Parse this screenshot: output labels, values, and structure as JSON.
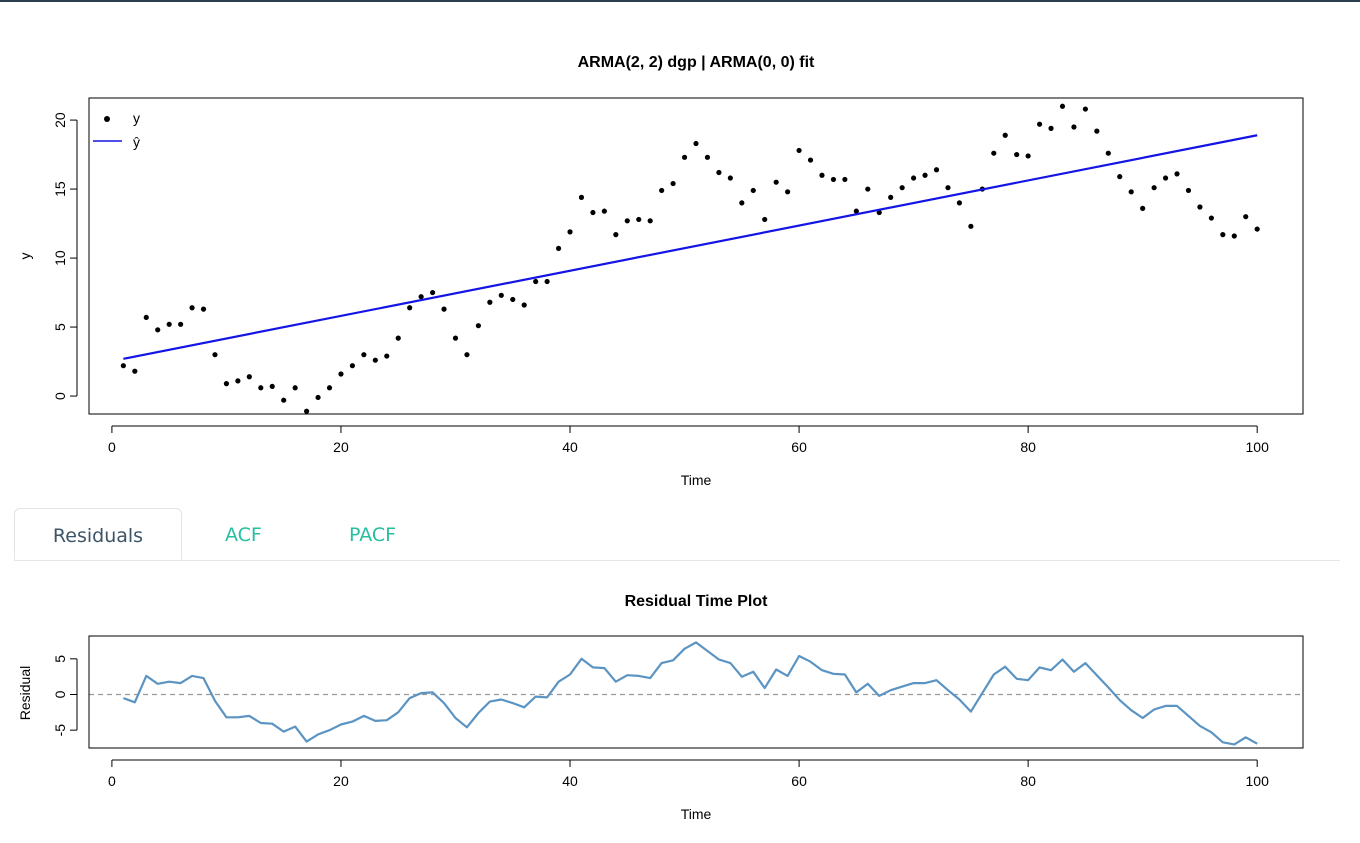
{
  "chart_data": [
    {
      "type": "scatter+line",
      "title": "ARMA(2, 2) dgp | ARMA(0, 0) fit",
      "xlabel": "Time",
      "ylabel": "y",
      "xlim": [
        -2,
        104
      ],
      "ylim": [
        -1.3,
        21.6
      ],
      "xticks": [
        0,
        20,
        40,
        60,
        80,
        100
      ],
      "yticks": [
        0,
        5,
        10,
        15,
        20
      ],
      "legend": {
        "position": "top-left",
        "entries": [
          "y",
          "ŷ"
        ]
      },
      "series": [
        {
          "name": "y",
          "kind": "points",
          "color": "#000000",
          "x": [
            1,
            2,
            3,
            4,
            5,
            6,
            7,
            8,
            9,
            10,
            11,
            12,
            13,
            14,
            15,
            16,
            17,
            18,
            19,
            20,
            21,
            22,
            23,
            24,
            25,
            26,
            27,
            28,
            29,
            30,
            31,
            32,
            33,
            34,
            35,
            36,
            37,
            38,
            39,
            40,
            41,
            42,
            43,
            44,
            45,
            46,
            47,
            48,
            49,
            50,
            51,
            52,
            53,
            54,
            55,
            56,
            57,
            58,
            59,
            60,
            61,
            62,
            63,
            64,
            65,
            66,
            67,
            68,
            69,
            70,
            71,
            72,
            73,
            74,
            75,
            76,
            77,
            78,
            79,
            80,
            81,
            82,
            83,
            84,
            85,
            86,
            87,
            88,
            89,
            90,
            91,
            92,
            93,
            94,
            95,
            96,
            97,
            98,
            99,
            100
          ],
          "y": [
            2.2,
            1.8,
            5.7,
            4.8,
            5.2,
            5.2,
            6.4,
            6.3,
            3.0,
            0.9,
            1.1,
            1.4,
            0.6,
            0.7,
            -0.3,
            0.6,
            -1.1,
            -0.1,
            0.6,
            1.6,
            2.2,
            3.0,
            2.6,
            2.9,
            4.2,
            6.4,
            7.2,
            7.5,
            6.3,
            4.2,
            3.0,
            5.1,
            6.8,
            7.3,
            7.0,
            6.6,
            8.3,
            8.3,
            10.7,
            11.9,
            14.4,
            13.3,
            13.4,
            11.7,
            12.7,
            12.8,
            12.7,
            14.9,
            15.4,
            17.3,
            18.3,
            17.3,
            16.2,
            15.8,
            14.0,
            14.9,
            12.8,
            15.5,
            14.8,
            17.8,
            17.1,
            16.0,
            15.7,
            15.7,
            13.4,
            15.0,
            13.3,
            14.4,
            15.1,
            15.8,
            16.0,
            16.4,
            15.1,
            14.0,
            12.3,
            15.0,
            17.6,
            18.9,
            17.5,
            17.4,
            19.7,
            19.4,
            21.0,
            19.5,
            20.8,
            19.2,
            17.6,
            15.9,
            14.8,
            13.6,
            15.1,
            15.8,
            16.1,
            14.9,
            13.7,
            12.9,
            11.7,
            11.6,
            13.0,
            12.1
          ]
        },
        {
          "name": "ŷ",
          "kind": "line",
          "color": "#1414e6",
          "x": [
            1,
            100
          ],
          "y": [
            2.7,
            18.9
          ]
        }
      ]
    },
    {
      "type": "line",
      "title": "Residual Time Plot",
      "xlabel": "Time",
      "ylabel": "Residual",
      "xlim": [
        -2,
        104
      ],
      "ylim": [
        -7.5,
        8.2
      ],
      "xticks": [
        0,
        20,
        40,
        60,
        80,
        100
      ],
      "yticks": [
        5,
        0,
        -5
      ],
      "yticklabels": [
        "5",
        "0",
        "-5"
      ],
      "reference_line": {
        "y": 0,
        "style": "dashed",
        "color": "#999999"
      },
      "series": [
        {
          "color": "#5b94c2",
          "x": [
            1,
            2,
            3,
            4,
            5,
            6,
            7,
            8,
            9,
            10,
            11,
            12,
            13,
            14,
            15,
            16,
            17,
            18,
            19,
            20,
            21,
            22,
            23,
            24,
            25,
            26,
            27,
            28,
            29,
            30,
            31,
            32,
            33,
            34,
            35,
            36,
            37,
            38,
            39,
            40,
            41,
            42,
            43,
            44,
            45,
            46,
            47,
            48,
            49,
            50,
            51,
            52,
            53,
            54,
            55,
            56,
            57,
            58,
            59,
            60,
            61,
            62,
            63,
            64,
            65,
            66,
            67,
            68,
            69,
            70,
            71,
            72,
            73,
            74,
            75,
            76,
            77,
            78,
            79,
            80,
            81,
            82,
            83,
            84,
            85,
            86,
            87,
            88,
            89,
            90,
            91,
            92,
            93,
            94,
            95,
            96,
            97,
            98,
            99,
            100
          ],
          "y": [
            -0.5,
            -1.1,
            2.6,
            1.5,
            1.8,
            1.6,
            2.6,
            2.3,
            -0.9,
            -3.2,
            -3.2,
            -3.0,
            -4.0,
            -4.1,
            -5.2,
            -4.5,
            -6.6,
            -5.6,
            -5.0,
            -4.2,
            -3.8,
            -3.0,
            -3.7,
            -3.6,
            -2.5,
            -0.5,
            0.2,
            0.3,
            -1.2,
            -3.3,
            -4.6,
            -2.6,
            -1.0,
            -0.7,
            -1.2,
            -1.8,
            -0.3,
            -0.4,
            1.8,
            2.8,
            5.0,
            3.8,
            3.7,
            1.8,
            2.7,
            2.6,
            2.3,
            4.4,
            4.8,
            6.4,
            7.3,
            6.1,
            4.9,
            4.4,
            2.5,
            3.2,
            0.9,
            3.5,
            2.6,
            5.4,
            4.6,
            3.4,
            2.9,
            2.8,
            0.3,
            1.5,
            -0.2,
            0.6,
            1.1,
            1.6,
            1.6,
            2.0,
            0.6,
            -0.7,
            -2.4,
            0.2,
            2.8,
            3.9,
            2.2,
            2.0,
            3.8,
            3.4,
            4.9,
            3.2,
            4.4,
            2.7,
            1.0,
            -0.8,
            -2.2,
            -3.3,
            -2.1,
            -1.6,
            -1.6,
            -3.0,
            -4.4,
            -5.3,
            -6.7,
            -7.0,
            -6.0,
            -6.9
          ]
        }
      ]
    }
  ],
  "tabs": [
    {
      "label": "Residuals",
      "active": true
    },
    {
      "label": "ACF",
      "active": false
    },
    {
      "label": "PACF",
      "active": false
    }
  ]
}
